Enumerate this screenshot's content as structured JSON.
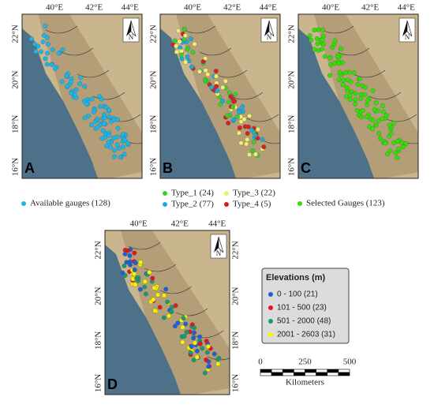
{
  "lon_labels": [
    "40°E",
    "42°E",
    "44°E"
  ],
  "lat_labels": [
    "22°N",
    "20°N",
    "18°N",
    "16°N"
  ],
  "north": "N",
  "panels": [
    {
      "label": "A",
      "legend": [
        {
          "text": "Available gauges (128)",
          "color": "#1cb5e8"
        }
      ]
    },
    {
      "label": "B",
      "legend": [
        {
          "text": "Type_1 (24)",
          "color": "#3ccf2c"
        },
        {
          "text": "Type_2 (77)",
          "color": "#1aa9e0"
        },
        {
          "text": "Type_3 (22)",
          "color": "#f2ee70"
        },
        {
          "text": "Type_4 (5)",
          "color": "#d42020"
        }
      ]
    },
    {
      "label": "C",
      "legend": [
        {
          "text": "Selected Gauges (123)",
          "color": "#33e000"
        }
      ]
    },
    {
      "label": "D"
    }
  ],
  "elevation_legend": {
    "title": "Elevations (m)",
    "items": [
      {
        "text": "0 - 100 (21)",
        "color": "#1f5fd6"
      },
      {
        "text": "101 - 500 (23)",
        "color": "#e3141b"
      },
      {
        "text": "501 - 2000 (48)",
        "color": "#1a9a6c"
      },
      {
        "text": "2001 - 2603 (31)",
        "color": "#f5f500"
      }
    ]
  },
  "scale_bar": {
    "ticks": [
      "0",
      "250",
      "500"
    ],
    "unit": "Kilometers"
  }
}
